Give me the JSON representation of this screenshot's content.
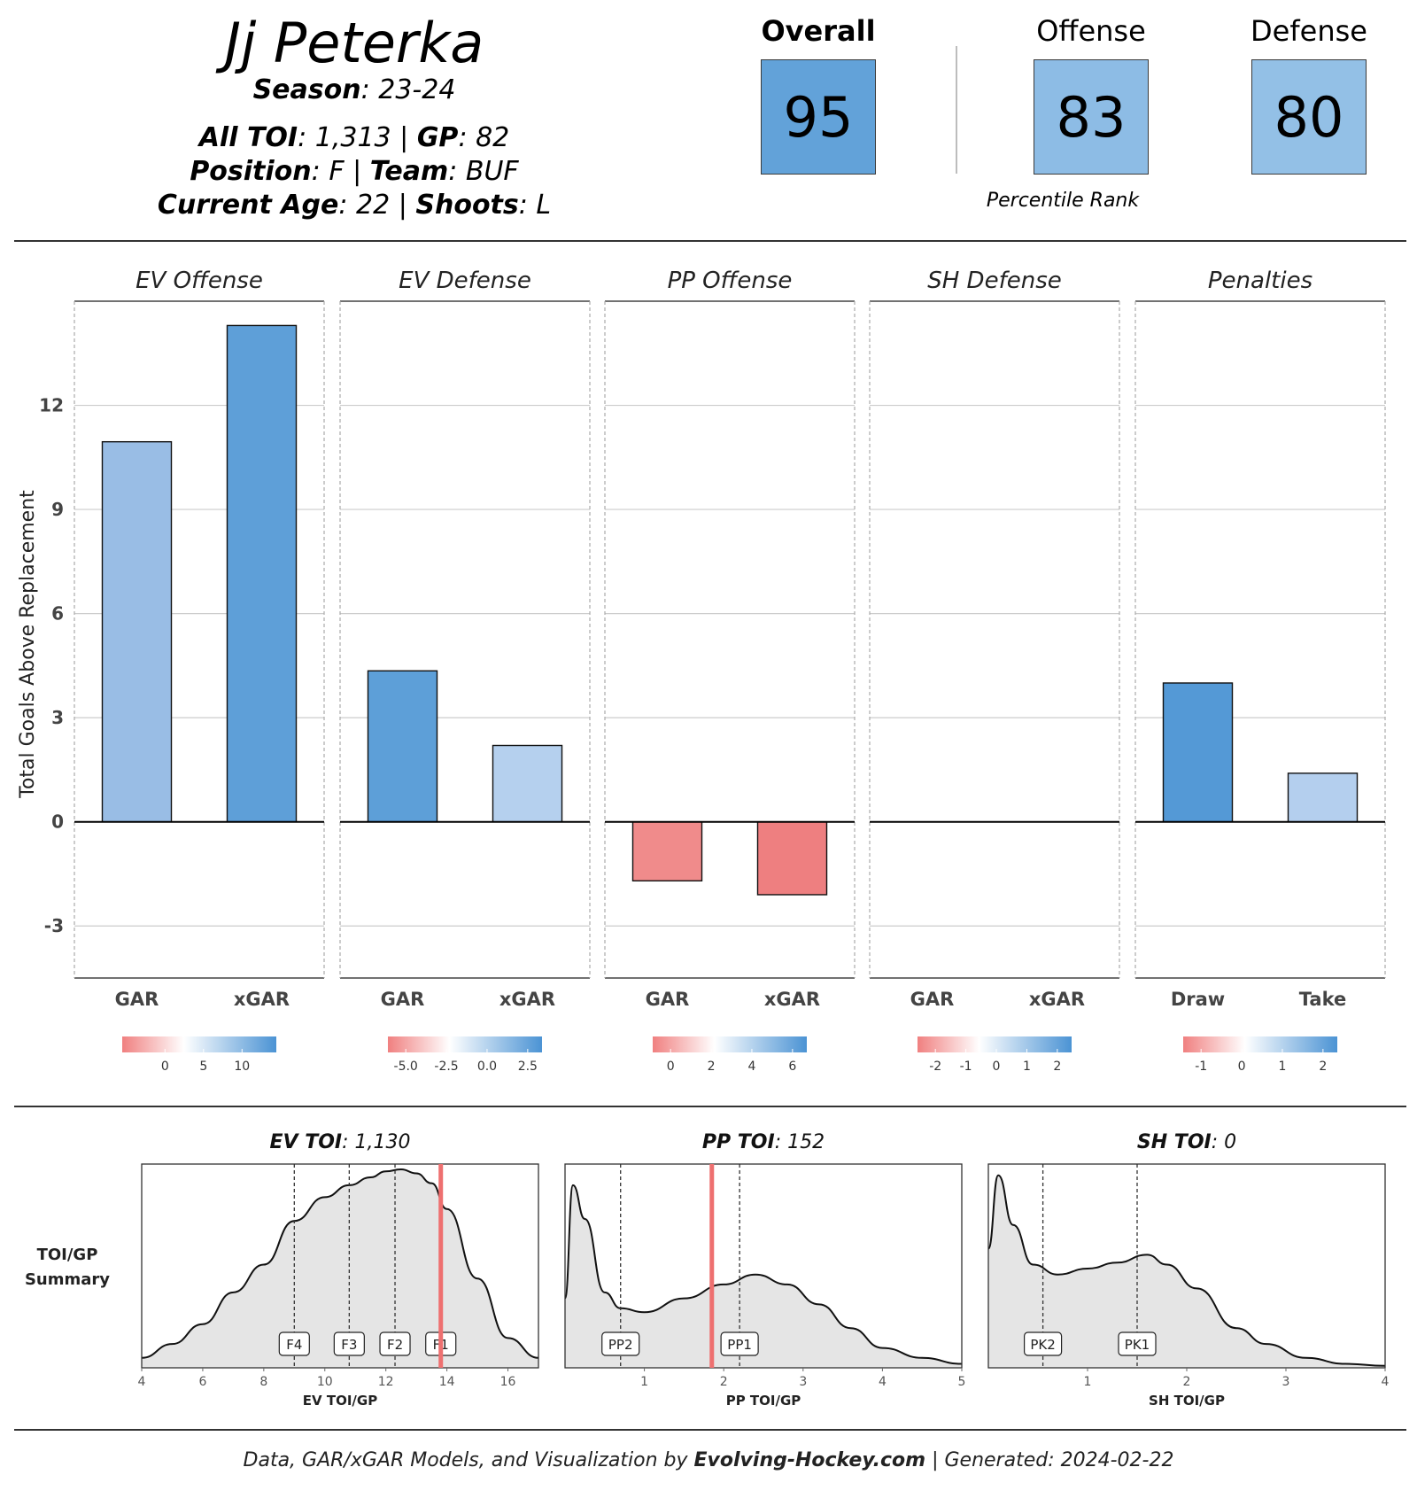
{
  "player": {
    "name": "Jj Peterka",
    "season_label": "Season",
    "season": "23-24",
    "toi_label": "All TOI",
    "toi": "1,313",
    "gp_label": "GP",
    "gp": "82",
    "position_label": "Position",
    "position": "F",
    "team_label": "Team",
    "team": "BUF",
    "age_label": "Current Age",
    "age": "22",
    "shoots_label": "Shoots",
    "shoots": "L"
  },
  "ranks": {
    "overall_label": "Overall",
    "overall": "95",
    "offense_label": "Offense",
    "offense": "83",
    "defense_label": "Defense",
    "defense": "80",
    "percentile_label": "Percentile Rank",
    "colors": {
      "overall": "#62a2d9",
      "offense": "#8dbce5",
      "defense": "#93c0e6"
    }
  },
  "chart_data": [
    {
      "type": "bar",
      "ylabel": "Total Goals Above Replacement",
      "ylim": [
        -4.5,
        15
      ],
      "yticks": [
        -3,
        0,
        3,
        6,
        9,
        12
      ],
      "grid": true,
      "facets": [
        {
          "title": "EV Offense",
          "categories": [
            "GAR",
            "xGAR"
          ],
          "values": [
            10.95,
            14.3
          ],
          "colors": [
            "#99bde5",
            "#5e9fd8"
          ],
          "legend": {
            "ticks": [
              "0",
              "5",
              "10"
            ]
          }
        },
        {
          "title": "EV Defense",
          "categories": [
            "GAR",
            "xGAR"
          ],
          "values": [
            4.35,
            2.2
          ],
          "colors": [
            "#5d9fd8",
            "#b5d0ee"
          ],
          "legend": {
            "ticks": [
              "-5.0",
              "-2.5",
              "0.0",
              "2.5"
            ]
          }
        },
        {
          "title": "PP Offense",
          "categories": [
            "GAR",
            "xGAR"
          ],
          "values": [
            -1.7,
            -2.1
          ],
          "colors": [
            "#f08b8b",
            "#ee7f80"
          ],
          "legend": {
            "ticks": [
              "0",
              "2",
              "4",
              "6"
            ]
          }
        },
        {
          "title": "SH Defense",
          "categories": [
            "GAR",
            "xGAR"
          ],
          "values": [
            0,
            0
          ],
          "colors": [
            "#ffffff",
            "#ffffff"
          ],
          "legend": {
            "ticks": [
              "-2",
              "-1",
              "0",
              "1",
              "2"
            ]
          }
        },
        {
          "title": "Penalties",
          "categories": [
            "Draw",
            "Take"
          ],
          "values": [
            4.0,
            1.4
          ],
          "colors": [
            "#5499d6",
            "#b4cfee"
          ],
          "legend": {
            "ticks": [
              "-1",
              "0",
              "1",
              "2"
            ]
          }
        }
      ]
    },
    {
      "type": "area",
      "row_label": [
        "TOI/GP",
        "Summary"
      ],
      "panels": [
        {
          "title_label": "EV TOI",
          "title_value": "1,130",
          "xlabel": "EV TOI/GP",
          "xlim": [
            4,
            17
          ],
          "xticks": [
            "4",
            "6",
            "8",
            "10",
            "12",
            "14",
            "16"
          ],
          "player_value": 13.8,
          "lines": [
            {
              "name": "F4",
              "x": 9.0
            },
            {
              "name": "F3",
              "x": 10.8
            },
            {
              "name": "F2",
              "x": 12.3
            },
            {
              "name": "F1",
              "x": 13.8
            }
          ],
          "density": {
            "x": [
              4.0,
              5.0,
              6.0,
              7.0,
              8.0,
              9.0,
              10.0,
              10.8,
              11.5,
              12.0,
              12.5,
              13.0,
              13.5,
              14.0,
              15.0,
              16.0,
              17.0
            ],
            "y": [
              0.05,
              0.12,
              0.22,
              0.38,
              0.52,
              0.74,
              0.86,
              0.92,
              0.96,
              0.99,
              1.0,
              0.98,
              0.93,
              0.8,
              0.45,
              0.15,
              0.05
            ]
          }
        },
        {
          "title_label": "PP TOI",
          "title_value": "152",
          "xlabel": "PP TOI/GP",
          "xlim": [
            0,
            5
          ],
          "xticks": [
            "1",
            "2",
            "3",
            "4",
            "5"
          ],
          "player_value": 1.85,
          "lines": [
            {
              "name": "PP2",
              "x": 0.7
            },
            {
              "name": "PP1",
              "x": 2.2
            }
          ],
          "density": {
            "x": [
              0.0,
              0.1,
              0.25,
              0.5,
              0.7,
              1.0,
              1.5,
              2.0,
              2.4,
              2.8,
              3.2,
              3.6,
              4.0,
              4.5,
              5.0
            ],
            "y": [
              0.35,
              0.92,
              0.75,
              0.38,
              0.3,
              0.28,
              0.35,
              0.42,
              0.47,
              0.42,
              0.32,
              0.2,
              0.1,
              0.05,
              0.02
            ]
          }
        },
        {
          "title_label": "SH TOI",
          "title_value": "0",
          "xlabel": "SH TOI/GP",
          "xlim": [
            0,
            4
          ],
          "xticks": [
            "1",
            "2",
            "3",
            "4"
          ],
          "player_value": null,
          "lines": [
            {
              "name": "PK2",
              "x": 0.55
            },
            {
              "name": "PK1",
              "x": 1.5
            }
          ],
          "density": {
            "x": [
              0.0,
              0.1,
              0.25,
              0.45,
              0.7,
              1.0,
              1.3,
              1.6,
              1.8,
              2.1,
              2.5,
              2.8,
              3.2,
              3.6,
              4.0
            ],
            "y": [
              0.6,
              0.97,
              0.72,
              0.52,
              0.47,
              0.5,
              0.53,
              0.57,
              0.52,
              0.4,
              0.2,
              0.12,
              0.05,
              0.02,
              0.01
            ]
          }
        }
      ]
    }
  ],
  "footer": {
    "prefix": "Data, GAR/xGAR Models, and Visualization by",
    "site": "Evolving-Hockey.com",
    "generated_label": "| Generated:",
    "generated": "2024-02-22"
  }
}
